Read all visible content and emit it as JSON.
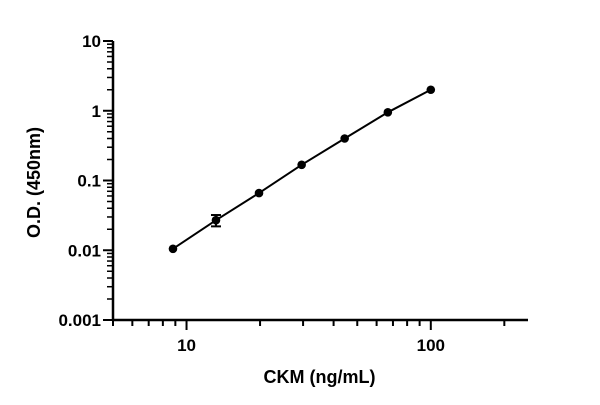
{
  "chart_data": {
    "type": "scatter",
    "title": "",
    "xlabel": "CKM (ng/mL)",
    "ylabel": "O.D. (450nm)",
    "xscale": "log",
    "yscale": "log",
    "xlim": [
      5,
      250
    ],
    "ylim": [
      0.001,
      10
    ],
    "x_ticks_labeled": [
      "10",
      "100"
    ],
    "y_ticks_labeled": [
      "0.001",
      "0.01",
      "0.1",
      "1",
      "10"
    ],
    "grid": false,
    "legend": "none",
    "series": [
      {
        "x": [
          8.8,
          13.2,
          19.8,
          29.6,
          44.4,
          66.7,
          100
        ],
        "y": [
          0.0105,
          0.027,
          0.066,
          0.168,
          0.4,
          0.95,
          2.0
        ],
        "y_error": [
          0,
          0.005,
          0,
          0,
          0,
          0,
          0
        ],
        "color": "#000000",
        "fit_line": true
      }
    ]
  }
}
